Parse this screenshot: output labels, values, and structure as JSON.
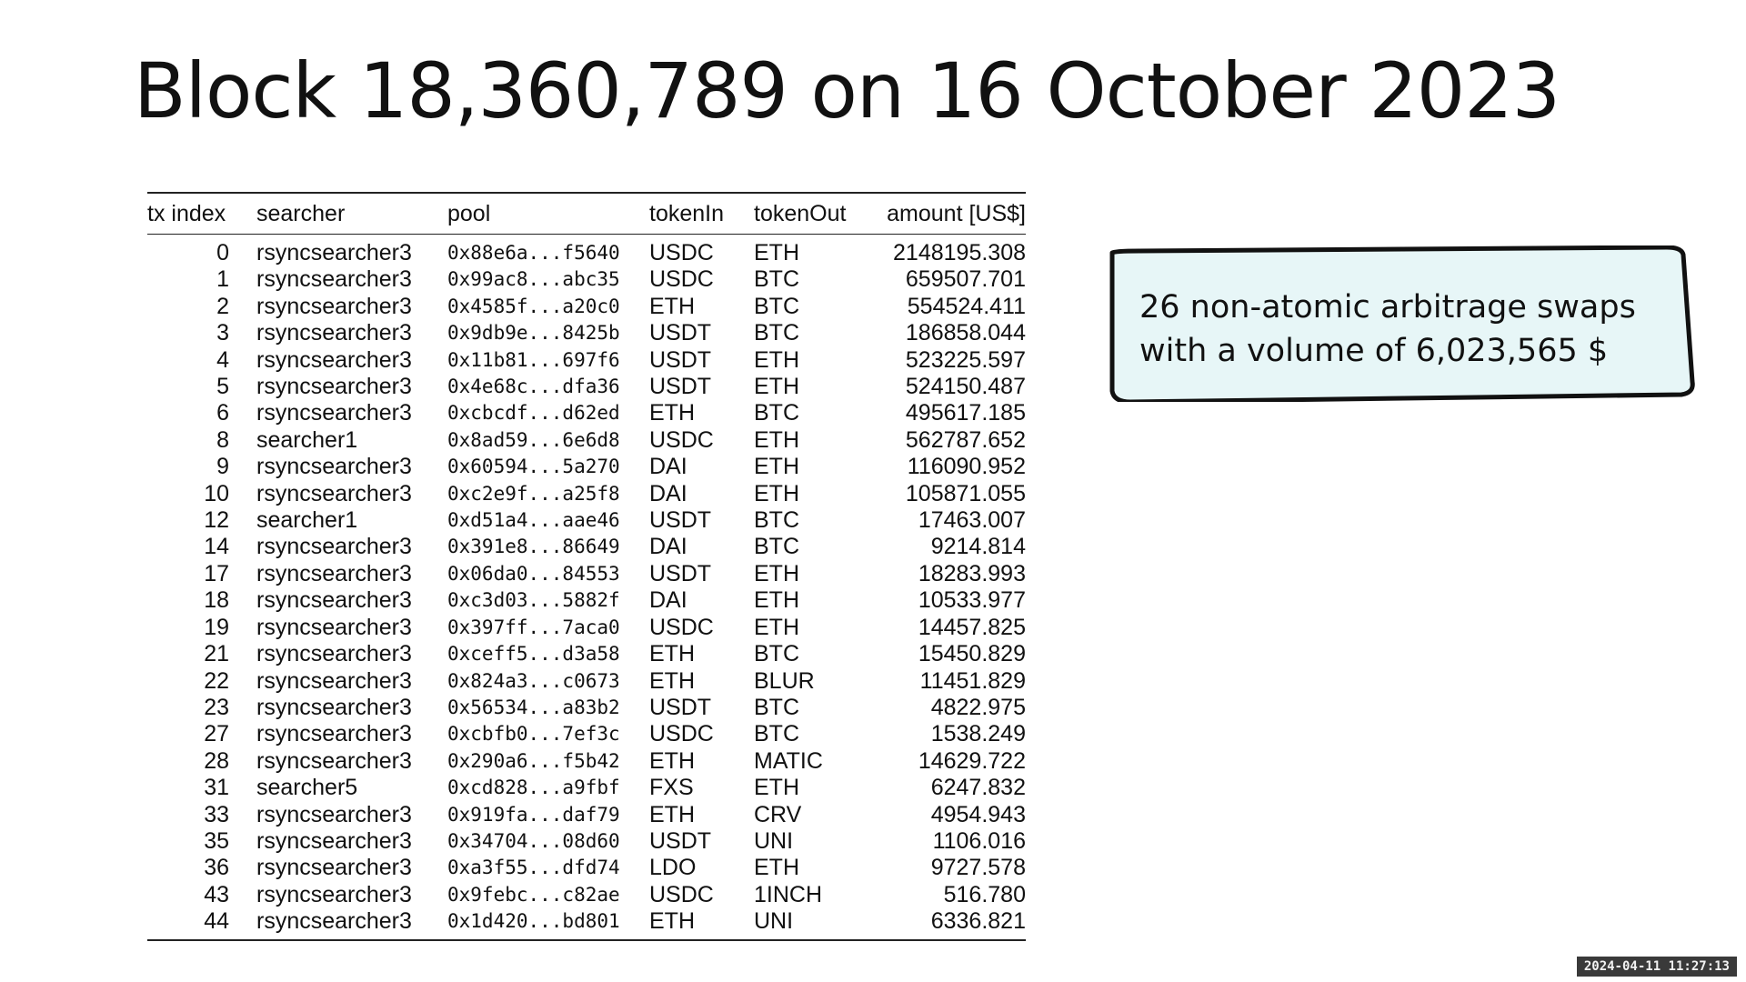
{
  "title": "Block 18,360,789 on 16 October 2023",
  "table": {
    "headers": {
      "tx_index": "tx index",
      "searcher": "searcher",
      "pool": "pool",
      "token_in": "tokenIn",
      "token_out": "tokenOut",
      "amount": "amount [US$]"
    },
    "rows": [
      {
        "tx": "0",
        "searcher": "rsyncsearcher3",
        "pool": "0x88e6a...f5640",
        "in": "USDC",
        "out": "ETH",
        "amount": "2148195.308"
      },
      {
        "tx": "1",
        "searcher": "rsyncsearcher3",
        "pool": "0x99ac8...abc35",
        "in": "USDC",
        "out": "BTC",
        "amount": "659507.701"
      },
      {
        "tx": "2",
        "searcher": "rsyncsearcher3",
        "pool": "0x4585f...a20c0",
        "in": "ETH",
        "out": "BTC",
        "amount": "554524.411"
      },
      {
        "tx": "3",
        "searcher": "rsyncsearcher3",
        "pool": "0x9db9e...8425b",
        "in": "USDT",
        "out": "BTC",
        "amount": "186858.044"
      },
      {
        "tx": "4",
        "searcher": "rsyncsearcher3",
        "pool": "0x11b81...697f6",
        "in": "USDT",
        "out": "ETH",
        "amount": "523225.597"
      },
      {
        "tx": "5",
        "searcher": "rsyncsearcher3",
        "pool": "0x4e68c...dfa36",
        "in": "USDT",
        "out": "ETH",
        "amount": "524150.487"
      },
      {
        "tx": "6",
        "searcher": "rsyncsearcher3",
        "pool": "0xcbcdf...d62ed",
        "in": "ETH",
        "out": "BTC",
        "amount": "495617.185"
      },
      {
        "tx": "8",
        "searcher": "searcher1",
        "pool": "0x8ad59...6e6d8",
        "in": "USDC",
        "out": "ETH",
        "amount": "562787.652"
      },
      {
        "tx": "9",
        "searcher": "rsyncsearcher3",
        "pool": "0x60594...5a270",
        "in": "DAI",
        "out": "ETH",
        "amount": "116090.952"
      },
      {
        "tx": "10",
        "searcher": "rsyncsearcher3",
        "pool": "0xc2e9f...a25f8",
        "in": "DAI",
        "out": "ETH",
        "amount": "105871.055"
      },
      {
        "tx": "12",
        "searcher": "searcher1",
        "pool": "0xd51a4...aae46",
        "in": "USDT",
        "out": "BTC",
        "amount": "17463.007"
      },
      {
        "tx": "14",
        "searcher": "rsyncsearcher3",
        "pool": "0x391e8...86649",
        "in": "DAI",
        "out": "BTC",
        "amount": "9214.814"
      },
      {
        "tx": "17",
        "searcher": "rsyncsearcher3",
        "pool": "0x06da0...84553",
        "in": "USDT",
        "out": "ETH",
        "amount": "18283.993"
      },
      {
        "tx": "18",
        "searcher": "rsyncsearcher3",
        "pool": "0xc3d03...5882f",
        "in": "DAI",
        "out": "ETH",
        "amount": "10533.977"
      },
      {
        "tx": "19",
        "searcher": "rsyncsearcher3",
        "pool": "0x397ff...7aca0",
        "in": "USDC",
        "out": "ETH",
        "amount": "14457.825"
      },
      {
        "tx": "21",
        "searcher": "rsyncsearcher3",
        "pool": "0xceff5...d3a58",
        "in": "ETH",
        "out": "BTC",
        "amount": "15450.829"
      },
      {
        "tx": "22",
        "searcher": "rsyncsearcher3",
        "pool": "0x824a3...c0673",
        "in": "ETH",
        "out": "BLUR",
        "amount": "11451.829"
      },
      {
        "tx": "23",
        "searcher": "rsyncsearcher3",
        "pool": "0x56534...a83b2",
        "in": "USDT",
        "out": "BTC",
        "amount": "4822.975"
      },
      {
        "tx": "27",
        "searcher": "rsyncsearcher3",
        "pool": "0xcbfb0...7ef3c",
        "in": "USDC",
        "out": "BTC",
        "amount": "1538.249"
      },
      {
        "tx": "28",
        "searcher": "rsyncsearcher3",
        "pool": "0x290a6...f5b42",
        "in": "ETH",
        "out": "MATIC",
        "amount": "14629.722"
      },
      {
        "tx": "31",
        "searcher": "searcher5",
        "pool": "0xcd828...a9fbf",
        "in": "FXS",
        "out": "ETH",
        "amount": "6247.832"
      },
      {
        "tx": "33",
        "searcher": "rsyncsearcher3",
        "pool": "0x919fa...daf79",
        "in": "ETH",
        "out": "CRV",
        "amount": "4954.943"
      },
      {
        "tx": "35",
        "searcher": "rsyncsearcher3",
        "pool": "0x34704...08d60",
        "in": "USDT",
        "out": "UNI",
        "amount": "1106.016"
      },
      {
        "tx": "36",
        "searcher": "rsyncsearcher3",
        "pool": "0xa3f55...dfd74",
        "in": "LDO",
        "out": "ETH",
        "amount": "9727.578"
      },
      {
        "tx": "43",
        "searcher": "rsyncsearcher3",
        "pool": "0x9febc...c82ae",
        "in": "USDC",
        "out": "1INCH",
        "amount": "516.780"
      },
      {
        "tx": "44",
        "searcher": "rsyncsearcher3",
        "pool": "0x1d420...bd801",
        "in": "ETH",
        "out": "UNI",
        "amount": "6336.821"
      }
    ]
  },
  "callout": {
    "line1": "26 non-atomic arbitrage swaps",
    "line2": "with a volume of 6,023,565 $",
    "fill": "#e7f6f7",
    "border": "#111111"
  },
  "timestamp": "2024-04-11 11:27:13"
}
